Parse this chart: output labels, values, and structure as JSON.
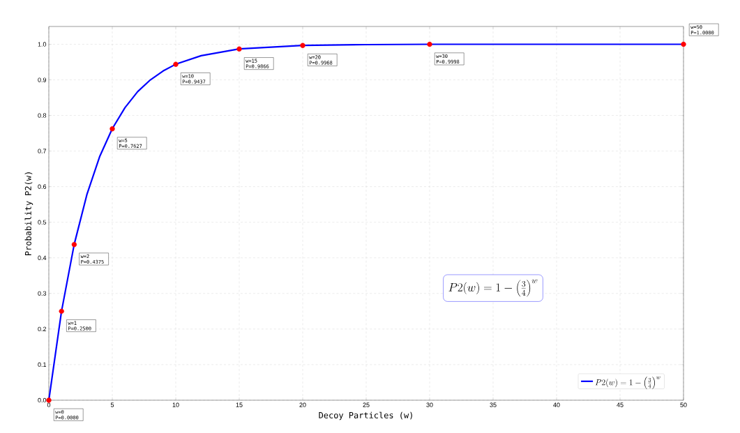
{
  "chart_data": {
    "type": "line",
    "xlabel": "Decoy Particles (w)",
    "ylabel": "Probability P2(w)",
    "xlim": [
      0,
      50
    ],
    "ylim": [
      0,
      1.05
    ],
    "xticks": [
      0,
      5,
      10,
      15,
      20,
      25,
      30,
      35,
      40,
      45,
      50
    ],
    "yticks": [
      {
        "value": 0,
        "label": "0.0"
      },
      0.1,
      0.2,
      0.3,
      0.4,
      0.5,
      0.6,
      0.7,
      0.8,
      0.9,
      {
        "value": 1,
        "label": "1.0"
      }
    ],
    "grid": true,
    "legend": "bottom right",
    "series": [
      {
        "name": "P2(w) = 1 - \\left(\\frac{3}{4}\\right)^{w}",
        "color": "#0000ff",
        "marker": "none",
        "x": [
          0,
          1,
          2,
          3,
          4,
          5,
          6,
          7,
          8,
          9,
          10,
          12,
          15,
          20,
          25,
          30,
          40,
          50
        ],
        "values": [
          0,
          0.25,
          0.438,
          0.578,
          0.684,
          0.763,
          0.822,
          0.867,
          0.9,
          0.925,
          0.944,
          0.968,
          0.987,
          0.997,
          0.999,
          1.0,
          1.0,
          1.0
        ]
      },
      {
        "type": "scatter",
        "color": "#ff0000",
        "marker": "circle",
        "x": [
          0,
          1,
          2,
          5,
          10,
          15,
          20,
          30,
          50
        ],
        "values": [
          0,
          0.25,
          0.4375,
          0.7627,
          0.9437,
          0.9866,
          0.9968,
          0.9998,
          1.0
        ]
      }
    ],
    "annotations": [
      {
        "text": "w=0 P=0.0000",
        "x": 0,
        "y": 0
      },
      {
        "text": "w=1 P=0.2500",
        "x": 1,
        "y": 0.25
      },
      {
        "text": "w=2 P=0.4375",
        "x": 2,
        "y": 0.4375
      },
      {
        "text": "w=5 P=0.7627",
        "x": 5,
        "y": 0.7627
      },
      {
        "text": "w=10 P=0.9437",
        "x": 10,
        "y": 0.9437
      },
      {
        "text": "w=15 P=0.9866",
        "x": 15,
        "y": 0.9866
      },
      {
        "text": "w=20 P=0.9968",
        "x": 20,
        "y": 0.9968
      },
      {
        "text": "w=30 P=0.9998",
        "x": 30,
        "y": 0.9998
      },
      {
        "text": "w=50 P=1.0000",
        "x": 50,
        "y": 1.0
      },
      "P2(w) = 1 - \\left(\\frac{3}{4}\\right)^{w}"
    ]
  }
}
